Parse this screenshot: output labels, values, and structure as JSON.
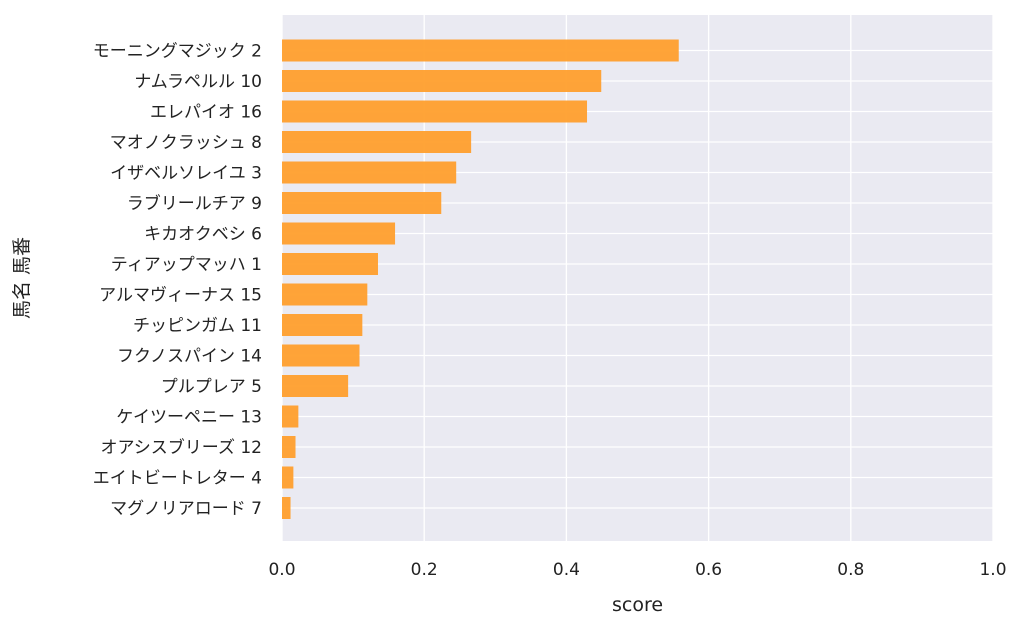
{
  "chart_data": {
    "type": "bar",
    "orientation": "horizontal",
    "xlabel": "score",
    "ylabel": "馬名 馬番",
    "xlim": [
      0,
      1.0
    ],
    "xticks": [
      "0.0",
      "0.2",
      "0.4",
      "0.6",
      "0.8",
      "1.0"
    ],
    "grid": true,
    "categories": [
      "モーニングマジック 2",
      "ナムラペルル 10",
      "エレパイオ 16",
      "マオノクラッシュ 8",
      "イザベルソレイユ 3",
      "ラブリールチア 9",
      "キカオクベシ 6",
      "ティアップマッハ 1",
      "アルマヴィーナス 15",
      "チッピンガム 11",
      "フクノスパイン 14",
      "プルプレア 5",
      "ケイツーペニー 13",
      "オアシスブリーズ 12",
      "エイトビートレター 4",
      "マグノリアロード 7"
    ],
    "values": [
      0.558,
      0.449,
      0.429,
      0.266,
      0.245,
      0.224,
      0.159,
      0.135,
      0.12,
      0.113,
      0.109,
      0.093,
      0.023,
      0.019,
      0.016,
      0.012
    ],
    "colors": {
      "bar": "#ff9f2d",
      "plot_bg": "#eaeaf2",
      "grid": "#ffffff"
    }
  }
}
